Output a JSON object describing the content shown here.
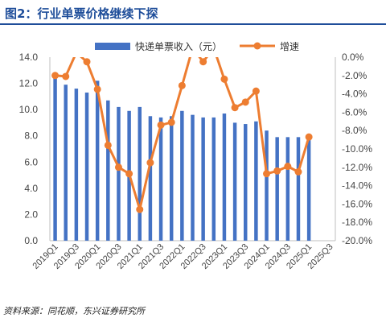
{
  "header": {
    "title": "图2：行业单票价格继续下探"
  },
  "footer": {
    "source": "资料来源：同花顺，东兴证券研究所"
  },
  "colors": {
    "bar": "#4472c4",
    "line": "#ed7d31",
    "title": "#1f4e9a",
    "axis": "#bfbfbf"
  },
  "chart_data": {
    "type": "bar",
    "title": "图2：行业单票价格继续下探",
    "legend_position": "top",
    "grid": false,
    "x": [
      "2019Q1",
      "2019Q2",
      "2019Q3",
      "2019Q4",
      "2020Q1",
      "2020Q2",
      "2020Q3",
      "2020Q4",
      "2021Q1",
      "2021Q2",
      "2021Q3",
      "2021Q4",
      "2022Q1",
      "2022Q2",
      "2022Q3",
      "2022Q4",
      "2023Q1",
      "2023Q2",
      "2023Q3",
      "2023Q4",
      "2024Q1",
      "2024Q2",
      "2024Q3",
      "2024Q4",
      "2025Q1",
      "2025Q2",
      "2025Q3"
    ],
    "x_tick_labels": [
      "2019Q1",
      "2019Q3",
      "2020Q1",
      "2020Q3",
      "2021Q1",
      "2021Q3",
      "2022Q1",
      "2022Q3",
      "2023Q1",
      "2023Q3",
      "2024Q1",
      "2024Q3",
      "2025Q1",
      "2025Q3"
    ],
    "series": [
      {
        "name": "快递单票收入（元）",
        "type": "bar",
        "axis": "left",
        "values": [
          12.7,
          11.9,
          11.6,
          11.3,
          12.2,
          10.7,
          10.2,
          9.9,
          10.2,
          9.5,
          9.4,
          9.5,
          9.9,
          9.6,
          9.4,
          9.4,
          9.7,
          9.0,
          8.9,
          9.1,
          8.4,
          7.9,
          7.9,
          7.9,
          7.8,
          null,
          null
        ]
      },
      {
        "name": "增速",
        "type": "line",
        "axis": "right",
        "values": [
          -2.0,
          -2.1,
          0.5,
          -0.5,
          -3.5,
          -9.6,
          -12.0,
          -12.7,
          -16.6,
          -11.5,
          -7.4,
          -7.1,
          -3.1,
          1.0,
          -0.5,
          1.0,
          -2.4,
          -5.5,
          -4.9,
          -3.7,
          -12.7,
          -12.4,
          -11.9,
          -12.5,
          -8.7,
          null,
          null
        ]
      }
    ],
    "y_left": {
      "min": 0,
      "max": 14,
      "step": 2,
      "tick_labels": [
        "0.0",
        "2.0",
        "4.0",
        "6.0",
        "8.0",
        "10.0",
        "12.0",
        "14.0"
      ]
    },
    "y_right": {
      "min": -20,
      "max": 0,
      "step": 2,
      "tick_labels": [
        "-20.0%",
        "-18.0%",
        "-16.0%",
        "-14.0%",
        "-12.0%",
        "-10.0%",
        "-8.0%",
        "-6.0%",
        "-4.0%",
        "-2.0%",
        "0.0%"
      ]
    }
  }
}
